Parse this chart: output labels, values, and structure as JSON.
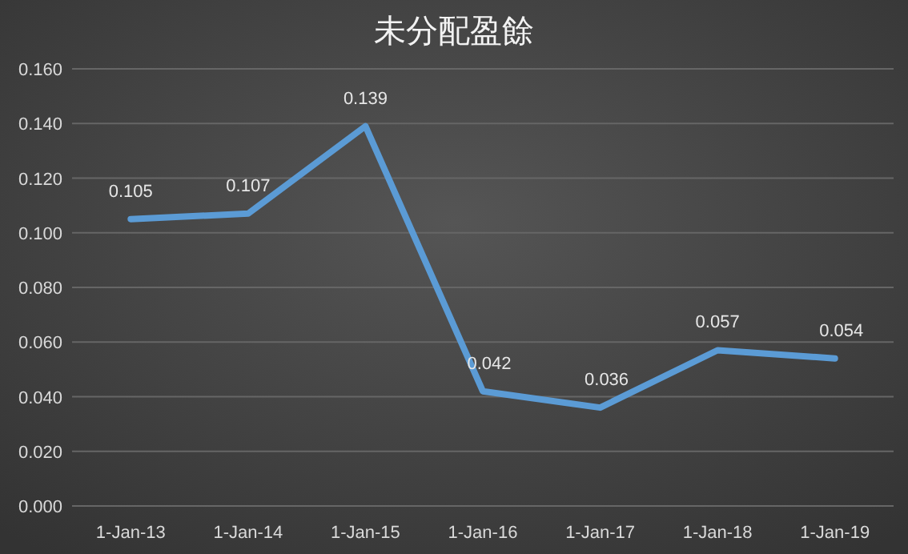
{
  "chart_data": {
    "type": "line",
    "title": "未分配盈餘",
    "categories": [
      "1-Jan-13",
      "1-Jan-14",
      "1-Jan-15",
      "1-Jan-16",
      "1-Jan-17",
      "1-Jan-18",
      "1-Jan-19"
    ],
    "series": [
      {
        "color": "#5b9bd5",
        "values": [
          0.105,
          0.107,
          0.139,
          0.042,
          0.036,
          0.057,
          0.054
        ]
      }
    ],
    "ylim": [
      0,
      0.16
    ],
    "yticks": [
      {
        "value": 0,
        "label": "0.000"
      },
      {
        "value": 0.02,
        "label": "0.020"
      },
      {
        "value": 0.04,
        "label": "0.040"
      },
      {
        "value": 0.06,
        "label": "0.060"
      },
      {
        "value": 0.08,
        "label": "0.080"
      },
      {
        "value": 0.1,
        "label": "0.100"
      },
      {
        "value": 0.12,
        "label": "0.120"
      },
      {
        "value": 0.14,
        "label": "0.140"
      },
      {
        "value": 0.16,
        "label": "0.160"
      }
    ],
    "grid": "y",
    "data_labels": true,
    "marker": "none",
    "line_style": "solid"
  }
}
